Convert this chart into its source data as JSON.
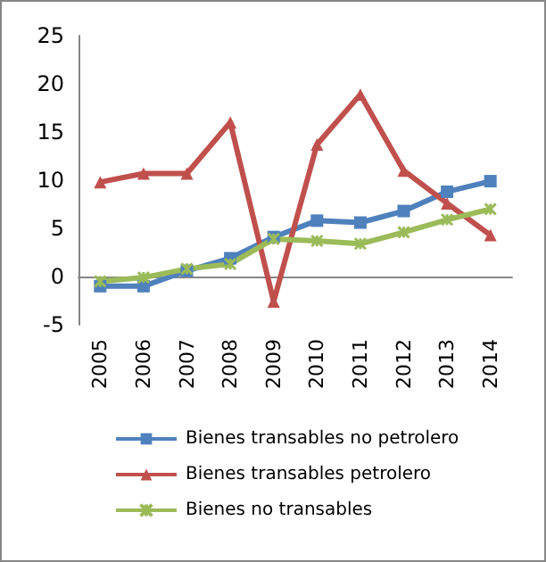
{
  "chart_data": {
    "type": "line",
    "categories": [
      "2005",
      "2006",
      "2007",
      "2008",
      "2009",
      "2010",
      "2011",
      "2012",
      "2013",
      "2014"
    ],
    "series": [
      {
        "name": "Bienes transables no petrolero",
        "color": "#4f81bd",
        "marker": "square",
        "values": [
          -1.0,
          -1.0,
          0.6,
          1.9,
          4.1,
          5.8,
          5.6,
          6.8,
          8.8,
          9.9
        ]
      },
      {
        "name": "Bienes transables petrolero",
        "color": "#c0504d",
        "marker": "triangle",
        "values": [
          9.8,
          10.7,
          10.7,
          16.0,
          -2.6,
          13.7,
          18.9,
          11.0,
          7.6,
          4.3
        ]
      },
      {
        "name": "Bienes no transables",
        "color": "#9bbb59",
        "marker": "cross",
        "values": [
          -0.5,
          -0.1,
          0.8,
          1.3,
          3.9,
          3.7,
          3.4,
          4.6,
          5.9,
          7.0
        ]
      }
    ],
    "ylim": [
      -5,
      25
    ],
    "yticks": [
      -5,
      0,
      5,
      10,
      15,
      20,
      25
    ],
    "legend": "bottom",
    "line_style": "solid"
  }
}
